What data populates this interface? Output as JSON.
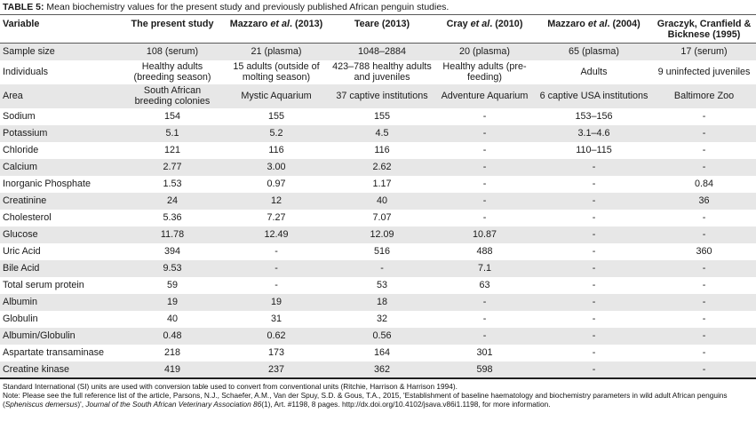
{
  "title": {
    "label": "TABLE 5:",
    "text": "Mean biochemistry values for the present study and previously published African penguin studies."
  },
  "table": {
    "columns": [
      "Variable",
      "The present study",
      "Mazzaro |et al|. (2013)",
      "Teare (2013)",
      "Cray |et al|. (2010)",
      "Mazzaro |et al|. (2004)",
      "Graczyk, Cranfield & Bicknese (1995)"
    ],
    "rows": [
      [
        "Sample size",
        "108 (serum)",
        "21 (plasma)",
        "1048–2884",
        "20 (plasma)",
        "65 (plasma)",
        "17 (serum)"
      ],
      [
        "Individuals",
        "Healthy adults (breeding season)",
        "15 adults (outside of molting season)",
        "423–788 healthy adults and juveniles",
        "Healthy adults (pre-feeding)",
        "Adults",
        "9 uninfected juveniles"
      ],
      [
        "Area",
        "South African breeding colonies",
        "Mystic Aquarium",
        "37 captive institutions",
        "Adventure Aquarium",
        "6 captive USA institutions",
        "Baltimore Zoo"
      ],
      [
        "Sodium",
        "154",
        "155",
        "155",
        "-",
        "153–156",
        "-"
      ],
      [
        "Potassium",
        "5.1",
        "5.2",
        "4.5",
        "-",
        "3.1–4.6",
        "-"
      ],
      [
        "Chloride",
        "121",
        "116",
        "116",
        "-",
        "110–115",
        "-"
      ],
      [
        "Calcium",
        "2.77",
        "3.00",
        "2.62",
        "-",
        "-",
        "-"
      ],
      [
        "Inorganic Phosphate",
        "1.53",
        "0.97",
        "1.17",
        "-",
        "-",
        "0.84"
      ],
      [
        "Creatinine",
        "24",
        "12",
        "40",
        "-",
        "-",
        "36"
      ],
      [
        "Cholesterol",
        "5.36",
        "7.27",
        "7.07",
        "-",
        "-",
        "-"
      ],
      [
        "Glucose",
        "11.78",
        "12.49",
        "12.09",
        "10.87",
        "-",
        "-"
      ],
      [
        "Uric Acid",
        "394",
        "-",
        "516",
        "488",
        "-",
        "360"
      ],
      [
        "Bile Acid",
        "9.53",
        "-",
        "-",
        "7.1",
        "-",
        "-"
      ],
      [
        "Total serum protein",
        "59",
        "-",
        "53",
        "63",
        "-",
        "-"
      ],
      [
        "Albumin",
        "19",
        "19",
        "18",
        "-",
        "-",
        "-"
      ],
      [
        "Globulin",
        "40",
        "31",
        "32",
        "-",
        "-",
        "-"
      ],
      [
        "Albumin/Globulin",
        "0.48",
        "0.62",
        "0.56",
        "-",
        "-",
        "-"
      ],
      [
        "Aspartate transaminase",
        "218",
        "173",
        "164",
        "301",
        "-",
        "-"
      ],
      [
        "Creatine kinase",
        "419",
        "237",
        "362",
        "598",
        "-",
        "-"
      ]
    ]
  },
  "footer": {
    "si_note": "Standard International (SI) units are used with conversion table used to convert from conventional units (Ritchie, Harrison & Harrison 1994).",
    "note": "Note: Please see the full reference list of the article, Parsons, N.J., Schaefer, A.M., Van der Spuy, S.D. & Gous, T.A., 2015, 'Establishment of baseline haematology and biochemistry parameters in wild adult African penguins (|Spheniscus demersus|)', |Journal of the South African Veterinary Association 86|(1), Art. #1198, 8 pages. http://dx.doi.org/10.4102/jsava.v86i1.1198, for more information."
  },
  "colors": {
    "stripe": "#e7e7e7",
    "rule_dark": "#5a5a5a",
    "rule_bottom": "#1f1f1f",
    "text": "#1a1a1a"
  }
}
